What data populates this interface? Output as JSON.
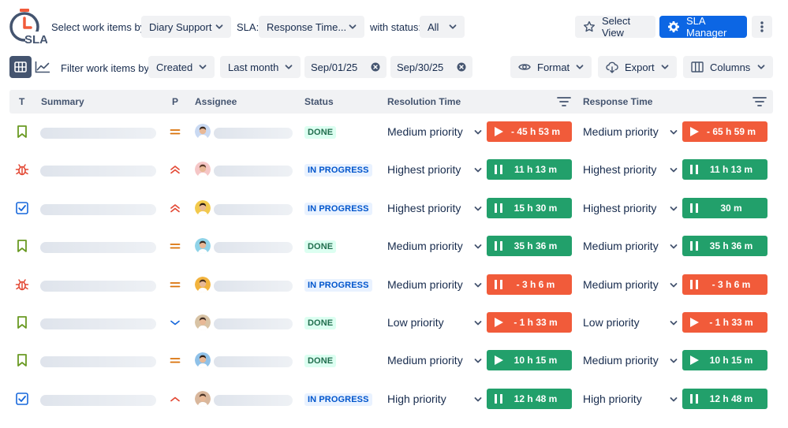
{
  "app": {
    "logo_text": "SLA"
  },
  "toolbar": {
    "select_by_label": "Select work items by:",
    "select_by_value": "Diary Support",
    "sla_label": "SLA:",
    "sla_value": "Response Time...",
    "status_label": "with status:",
    "status_value": "All",
    "select_view_label": "Select View",
    "sla_manager_label": "SLA Manager"
  },
  "filters": {
    "filter_label": "Filter work items by:",
    "field_value": "Created",
    "period_value": "Last month",
    "date_from": "Sep/01/25",
    "date_to": "Sep/30/25",
    "format_label": "Format",
    "export_label": "Export",
    "columns_label": "Columns"
  },
  "columns": {
    "type": "T",
    "summary": "Summary",
    "priority": "P",
    "assignee": "Assignee",
    "status": "Status",
    "resolution_time": "Resolution Time",
    "response_time": "Response Time"
  },
  "colors": {
    "primary": "#0c66e4",
    "sla_ok": "#22a06b",
    "sla_breached": "#f15b3a",
    "status_done_bg": "#dcfff1",
    "status_progress_bg": "#e9f2ff"
  },
  "rows": [
    {
      "type_icon": "story-icon",
      "priority_icon": "priority-medium-icon",
      "status": "DONE",
      "resolution": {
        "priority": "Medium priority",
        "state": "breached",
        "icon": "play-icon",
        "value": "- 45 h 53 m"
      },
      "response": {
        "priority": "Medium priority",
        "state": "breached",
        "icon": "play-icon",
        "value": "- 65 h 59 m"
      }
    },
    {
      "type_icon": "bug-icon",
      "priority_icon": "priority-highest-icon",
      "status": "IN PROGRESS",
      "resolution": {
        "priority": "Highest priority",
        "state": "ok",
        "icon": "pause-icon",
        "value": "11 h 13 m"
      },
      "response": {
        "priority": "Highest priority",
        "state": "ok",
        "icon": "pause-icon",
        "value": "11 h 13 m"
      }
    },
    {
      "type_icon": "task-icon",
      "priority_icon": "priority-highest-icon",
      "status": "IN PROGRESS",
      "resolution": {
        "priority": "Highest priority",
        "state": "ok",
        "icon": "pause-icon",
        "value": "15 h 30 m"
      },
      "response": {
        "priority": "Highest priority",
        "state": "ok",
        "icon": "pause-icon",
        "value": "30 m"
      }
    },
    {
      "type_icon": "story-icon",
      "priority_icon": "priority-medium-icon",
      "status": "DONE",
      "resolution": {
        "priority": "Medium priority",
        "state": "ok",
        "icon": "pause-icon",
        "value": "35 h 36 m"
      },
      "response": {
        "priority": "Medium priority",
        "state": "ok",
        "icon": "pause-icon",
        "value": "35 h 36 m"
      }
    },
    {
      "type_icon": "bug-icon",
      "priority_icon": "priority-medium-icon",
      "status": "IN PROGRESS",
      "resolution": {
        "priority": "Medium priority",
        "state": "breached",
        "icon": "pause-icon",
        "value": "- 3 h 6 m"
      },
      "response": {
        "priority": "Medium priority",
        "state": "breached",
        "icon": "pause-icon",
        "value": "- 3 h 6 m"
      }
    },
    {
      "type_icon": "story-icon",
      "priority_icon": "priority-low-icon",
      "status": "DONE",
      "resolution": {
        "priority": "Low priority",
        "state": "breached",
        "icon": "play-icon",
        "value": "- 1 h 33 m"
      },
      "response": {
        "priority": "Low priority",
        "state": "breached",
        "icon": "play-icon",
        "value": "- 1 h 33 m"
      }
    },
    {
      "type_icon": "story-icon",
      "priority_icon": "priority-medium-icon",
      "status": "DONE",
      "resolution": {
        "priority": "Medium priority",
        "state": "ok",
        "icon": "play-icon",
        "value": "10 h 15 m"
      },
      "response": {
        "priority": "Medium priority",
        "state": "ok",
        "icon": "play-icon",
        "value": "10 h 15 m"
      }
    },
    {
      "type_icon": "task-icon",
      "priority_icon": "priority-high-icon",
      "status": "IN PROGRESS",
      "resolution": {
        "priority": "High priority",
        "state": "ok",
        "icon": "pause-icon",
        "value": "12 h 48 m"
      },
      "response": {
        "priority": "High priority",
        "state": "ok",
        "icon": "pause-icon",
        "value": "12 h 48 m"
      }
    }
  ]
}
